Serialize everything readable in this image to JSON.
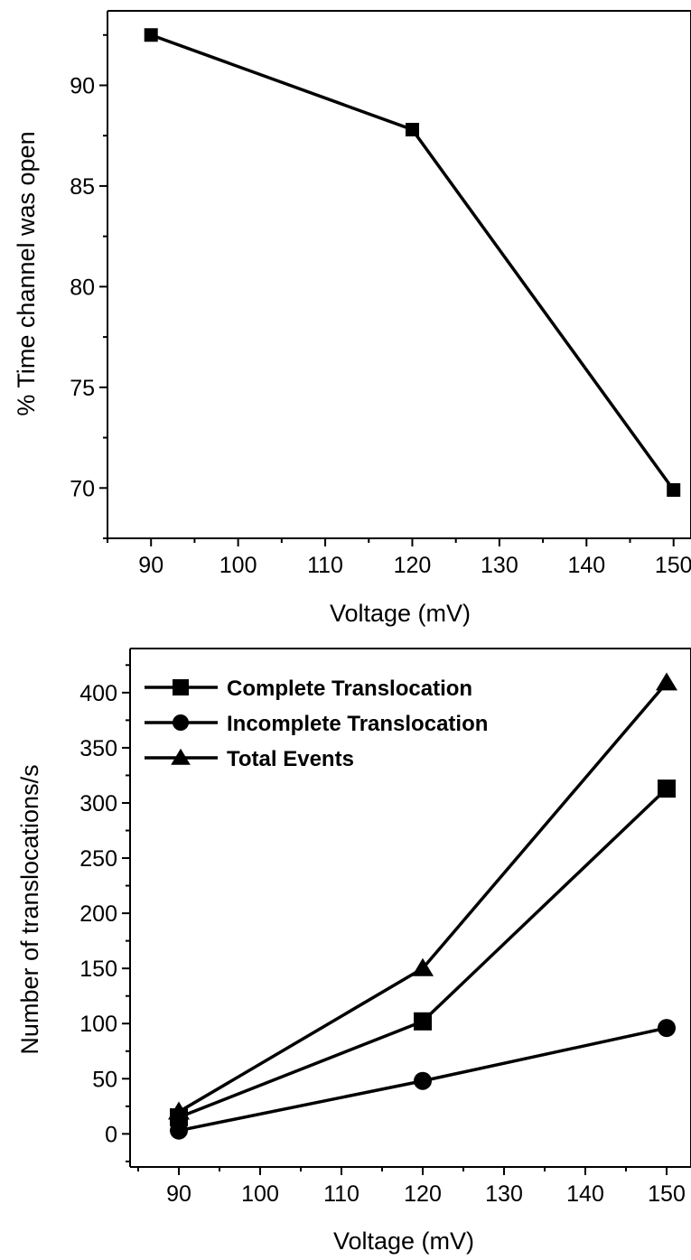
{
  "chart_data": [
    {
      "type": "line",
      "title": "",
      "xlabel": "Voltage (mV)",
      "ylabel": "% Time channel was open",
      "xlim": [
        85,
        152
      ],
      "ylim": [
        67.5,
        93.7
      ],
      "xticks": [
        90,
        100,
        110,
        120,
        130,
        140,
        150
      ],
      "yticks": [
        70,
        75,
        80,
        85,
        90
      ],
      "grid": false,
      "legend": "none",
      "series": [
        {
          "marker": "square",
          "x": [
            90,
            120,
            150
          ],
          "y": [
            92.5,
            87.8,
            69.9
          ]
        }
      ]
    },
    {
      "type": "line",
      "title": "",
      "xlabel": "Voltage (mV)",
      "ylabel": "Number of translocations/s",
      "xlim": [
        84,
        153
      ],
      "ylim": [
        -30,
        440
      ],
      "xticks": [
        90,
        100,
        110,
        120,
        130,
        140,
        150
      ],
      "yticks": [
        0,
        50,
        100,
        150,
        200,
        250,
        300,
        350,
        400
      ],
      "grid": false,
      "legend": "top-left",
      "series": [
        {
          "name": "Complete Translocation",
          "marker": "square",
          "x": [
            90,
            120,
            150
          ],
          "y": [
            15,
            102,
            313
          ]
        },
        {
          "name": "Incomplete Translocation",
          "marker": "circle",
          "x": [
            90,
            120,
            150
          ],
          "y": [
            3,
            48,
            96
          ]
        },
        {
          "name": "Total Events",
          "marker": "triangle",
          "x": [
            90,
            120,
            150
          ],
          "y": [
            20,
            150,
            409
          ]
        }
      ]
    }
  ]
}
